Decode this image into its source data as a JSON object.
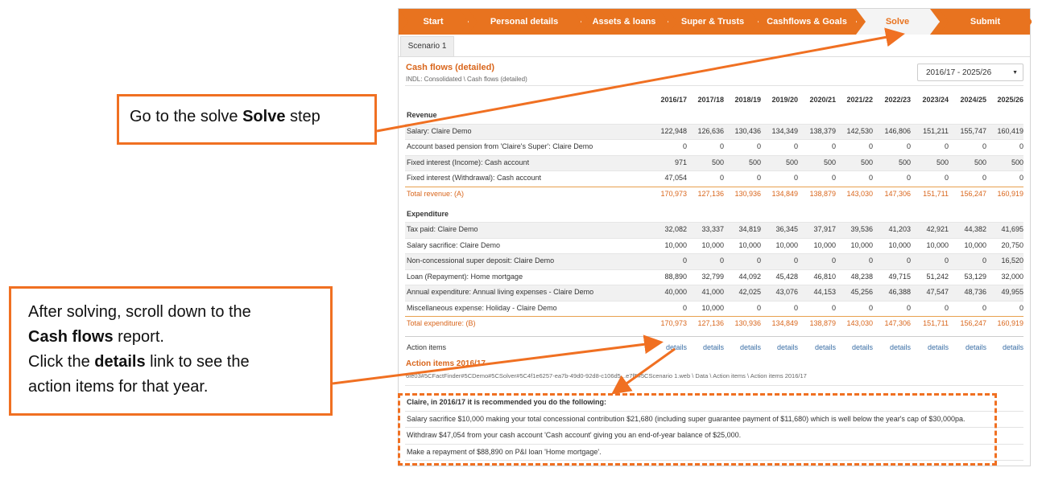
{
  "nav": {
    "steps": [
      "Start",
      "Personal details",
      "Assets & loans",
      "Super & Trusts",
      "Cashflows & Goals",
      "Solve",
      "Submit"
    ],
    "active": 5
  },
  "tab": "Scenario 1",
  "report": {
    "title": "Cash flows (detailed)",
    "subtitle": "INDL: Consolidated \\ Cash flows (detailed)",
    "range": "2016/17 - 2025/26"
  },
  "table": {
    "years": [
      "2016/17",
      "2017/18",
      "2018/19",
      "2019/20",
      "2020/21",
      "2021/22",
      "2022/23",
      "2023/24",
      "2024/25",
      "2025/26"
    ],
    "sections": [
      {
        "heading": "Revenue",
        "rows": [
          {
            "label": "Salary: Claire Demo",
            "values": [
              "122,948",
              "126,636",
              "130,436",
              "134,349",
              "138,379",
              "142,530",
              "146,806",
              "151,211",
              "155,747",
              "160,419"
            ]
          },
          {
            "label": "Account based pension from 'Claire's Super': Claire Demo",
            "values": [
              "0",
              "0",
              "0",
              "0",
              "0",
              "0",
              "0",
              "0",
              "0",
              "0"
            ]
          },
          {
            "label": "Fixed interest (Income): Cash account",
            "values": [
              "971",
              "500",
              "500",
              "500",
              "500",
              "500",
              "500",
              "500",
              "500",
              "500"
            ]
          },
          {
            "label": "Fixed interest (Withdrawal): Cash account",
            "values": [
              "47,054",
              "0",
              "0",
              "0",
              "0",
              "0",
              "0",
              "0",
              "0",
              "0"
            ]
          }
        ],
        "total": {
          "label": "Total revenue: (A)",
          "values": [
            "170,973",
            "127,136",
            "130,936",
            "134,849",
            "138,879",
            "143,030",
            "147,306",
            "151,711",
            "156,247",
            "160,919"
          ]
        }
      },
      {
        "heading": "Expenditure",
        "rows": [
          {
            "label": "Tax paid: Claire Demo",
            "values": [
              "32,082",
              "33,337",
              "34,819",
              "36,345",
              "37,917",
              "39,536",
              "41,203",
              "42,921",
              "44,382",
              "41,695"
            ]
          },
          {
            "label": "Salary sacrifice: Claire Demo",
            "values": [
              "10,000",
              "10,000",
              "10,000",
              "10,000",
              "10,000",
              "10,000",
              "10,000",
              "10,000",
              "10,000",
              "20,750"
            ]
          },
          {
            "label": "Non-concessional super deposit: Claire Demo",
            "values": [
              "0",
              "0",
              "0",
              "0",
              "0",
              "0",
              "0",
              "0",
              "0",
              "16,520"
            ]
          },
          {
            "label": "Loan (Repayment): Home mortgage",
            "values": [
              "88,890",
              "32,799",
              "44,092",
              "45,428",
              "46,810",
              "48,238",
              "49,715",
              "51,242",
              "53,129",
              "32,000"
            ]
          },
          {
            "label": "Annual expenditure: Annual living expenses - Claire Demo",
            "values": [
              "40,000",
              "41,000",
              "42,025",
              "43,076",
              "44,153",
              "45,256",
              "46,388",
              "47,547",
              "48,736",
              "49,955"
            ]
          },
          {
            "label": "Miscellaneous expense: Holiday - Claire Demo",
            "values": [
              "0",
              "10,000",
              "0",
              "0",
              "0",
              "0",
              "0",
              "0",
              "0",
              "0"
            ]
          }
        ],
        "total": {
          "label": "Total expenditure: (B)",
          "values": [
            "170,973",
            "127,136",
            "130,936",
            "134,849",
            "138,879",
            "143,030",
            "147,306",
            "151,711",
            "156,247",
            "160,919"
          ]
        }
      }
    ],
    "action_row": {
      "label": "Action items",
      "links": [
        "details",
        "details",
        "details",
        "details",
        "details",
        "details",
        "details",
        "details",
        "details",
        "details"
      ]
    }
  },
  "actions": {
    "title": "Action items 2016/17",
    "path": "6fe03#5CFactFinder#5CDemo#5CSolver#5C4f1e6257-ea7b-49d0-92d8-c106d5...e7f5#5CScenario 1.web \\ Data \\ Action items \\ Action items 2016/17",
    "intro": "Claire, in 2016/17 it is recommended you do the following:",
    "items": [
      "Salary sacrifice $10,000 making your total concessional contribution $21,680 (including super guarantee payment of $11,680) which is well below the year's cap of $30,000pa.",
      "Withdraw $47,054 from your cash account 'Cash account' giving you an end-of-year balance of $25,000.",
      "Make a repayment of $88,890 on P&I loan 'Home mortgage'."
    ]
  },
  "callouts": [
    {
      "lines": [
        [
          {
            "text": "Go to the solve ",
            "bold": false
          },
          {
            "text": "Solve",
            "bold": true
          },
          {
            "text": " step",
            "bold": false
          }
        ]
      ]
    },
    {
      "lines": [
        [
          {
            "text": "After solving, scroll down to the",
            "bold": false
          }
        ],
        [
          {
            "text": "Cash flows",
            "bold": true
          },
          {
            "text": " report.",
            "bold": false
          }
        ],
        [
          {
            "text": "Click the ",
            "bold": false
          },
          {
            "text": "details",
            "bold": true
          },
          {
            "text": " link to see the",
            "bold": false
          }
        ],
        [
          {
            "text": "action items for that year.",
            "bold": false
          }
        ]
      ]
    }
  ]
}
